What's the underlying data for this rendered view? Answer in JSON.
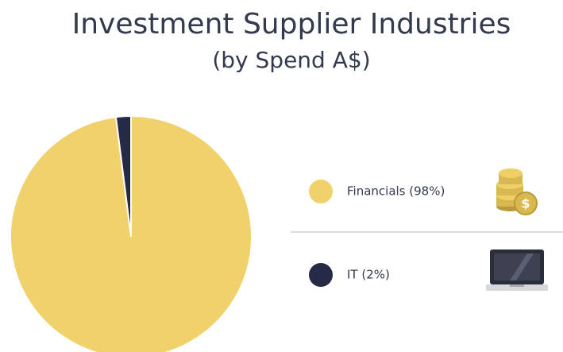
{
  "chart_data": {
    "type": "pie",
    "title": "Investment Supplier Industries",
    "subtitle": "(by Spend A$)",
    "categories": [
      "Financials (98%)",
      "IT (2%)"
    ],
    "values": [
      98,
      2
    ],
    "colors": [
      "#f0d16b",
      "#262a47"
    ]
  }
}
